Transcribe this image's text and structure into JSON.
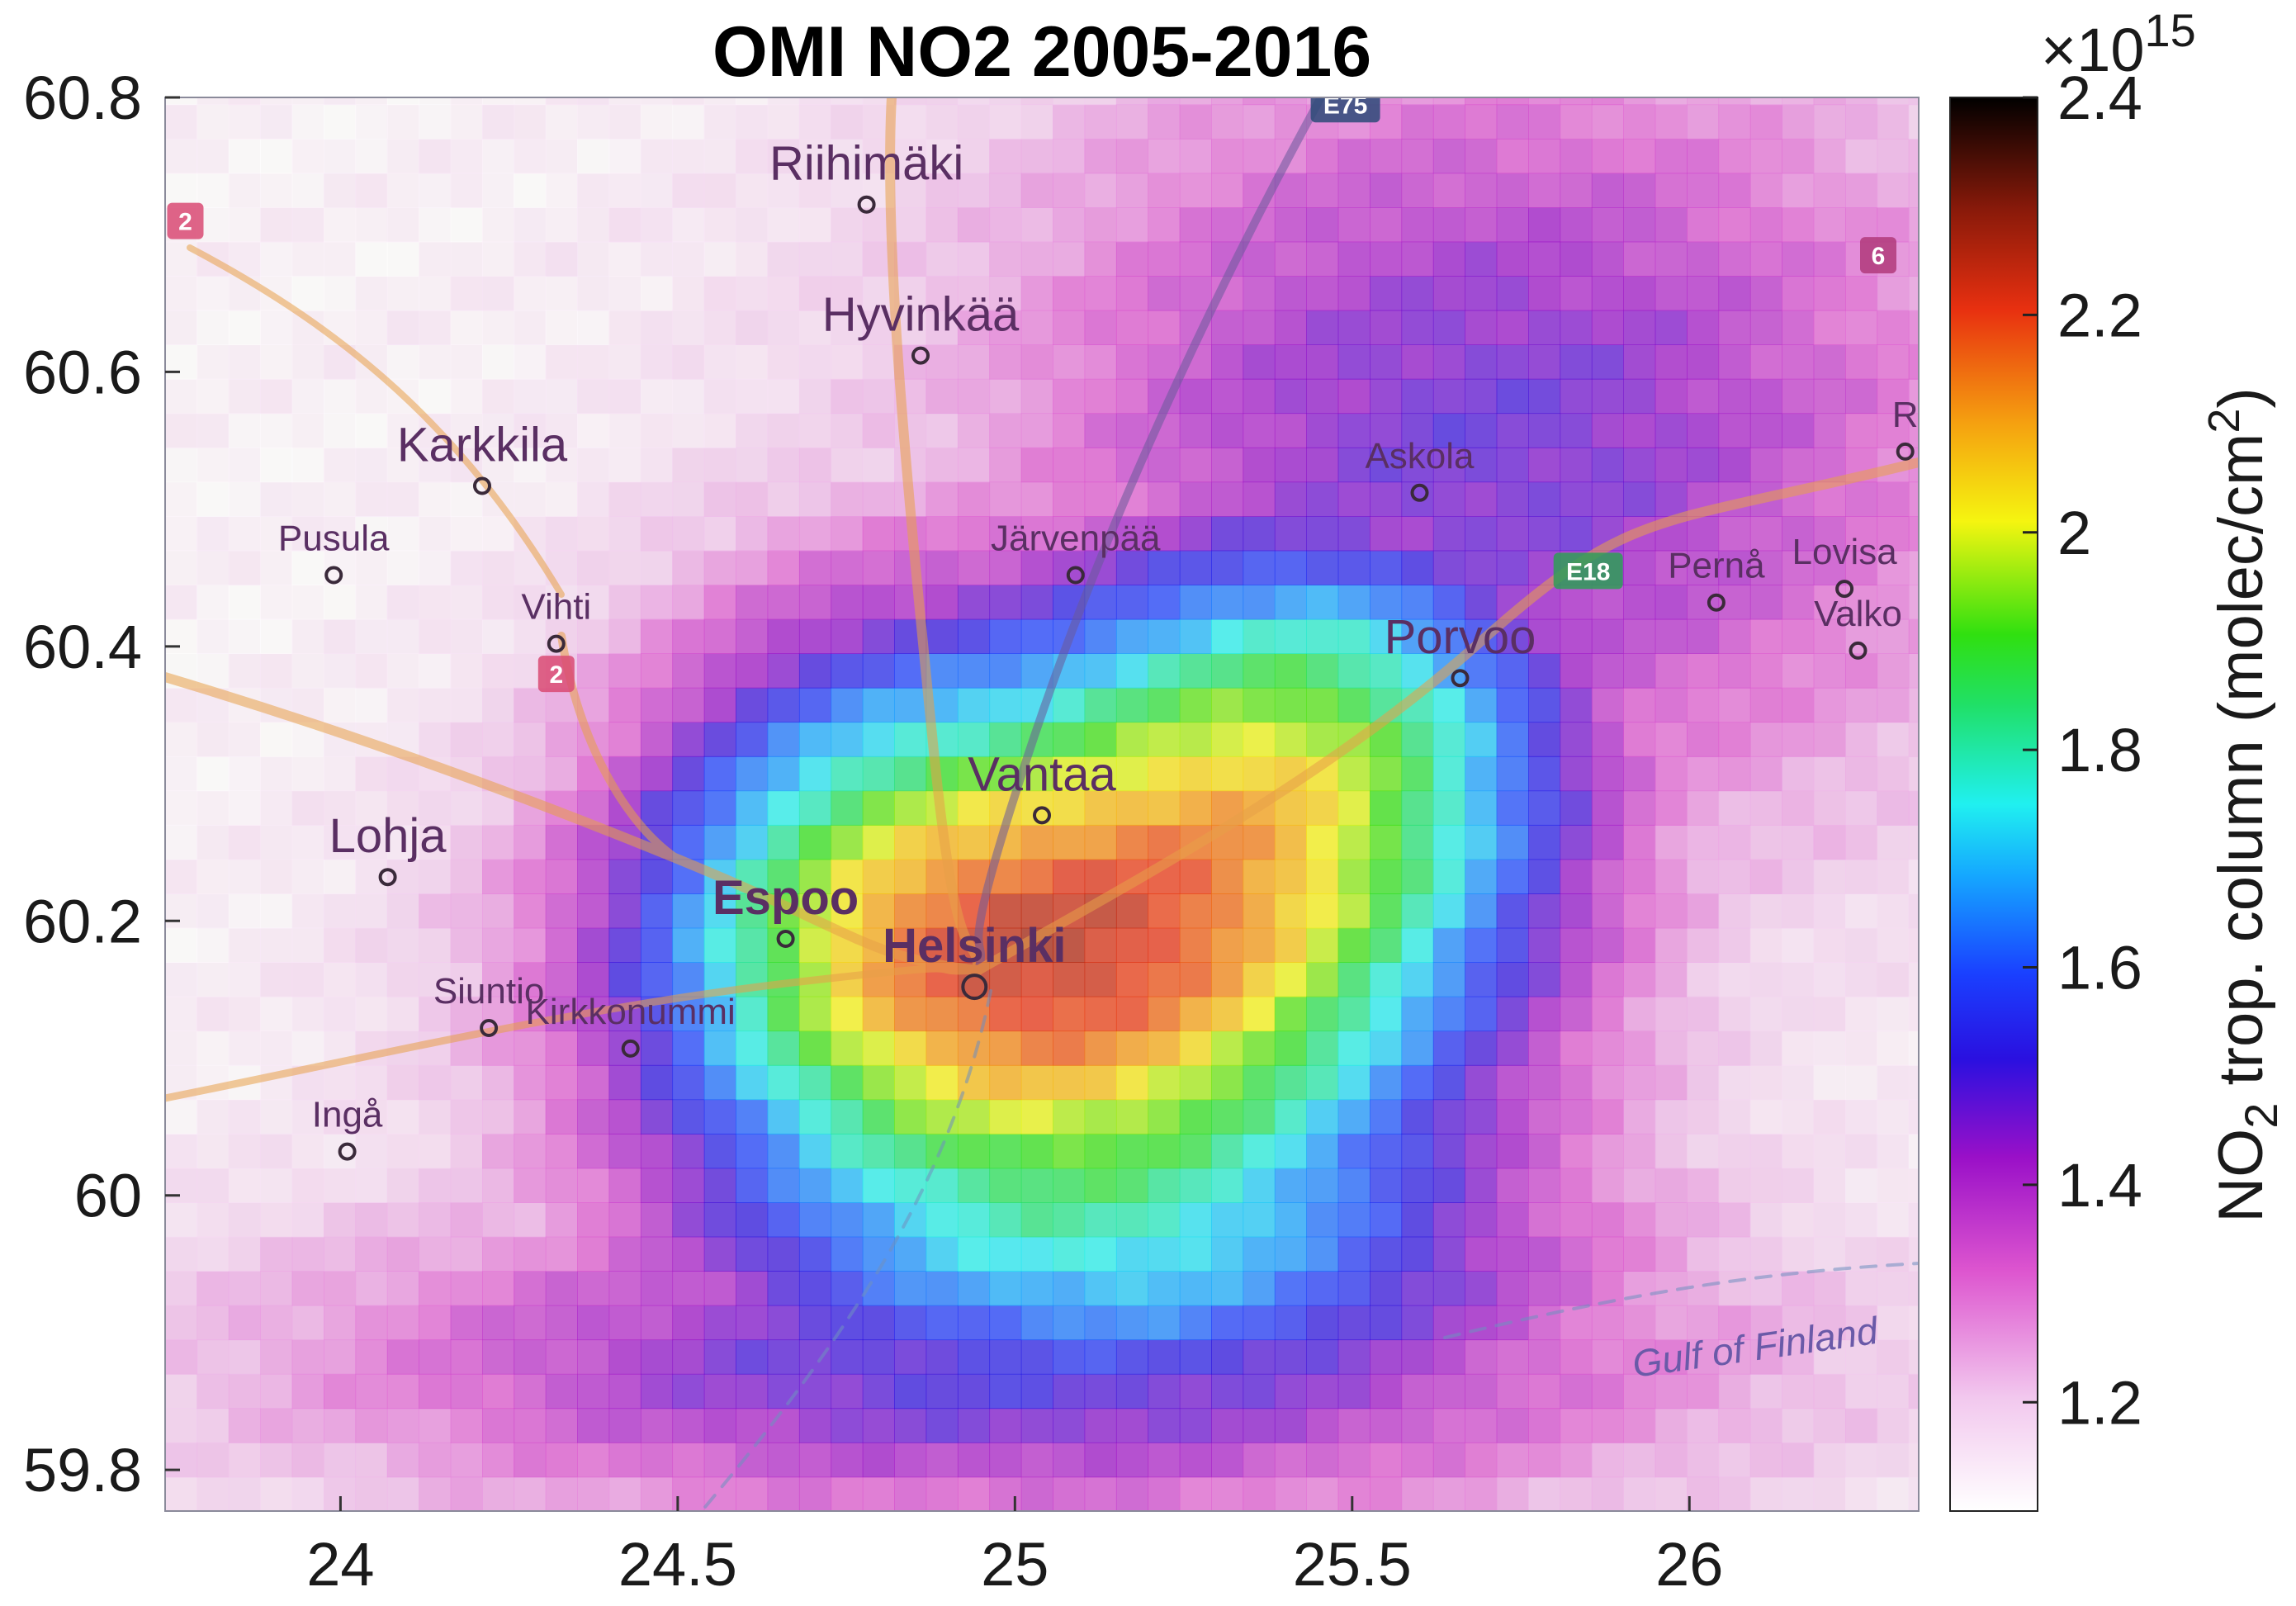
{
  "chart_data": {
    "type": "heatmap",
    "title": "OMI NO2 2005-2016",
    "xlabel": "",
    "ylabel": "",
    "xlim": [
      23.74,
      26.34
    ],
    "ylim": [
      59.77,
      60.8
    ],
    "x_ticks": [
      "24",
      "24.5",
      "25",
      "25.5",
      "26"
    ],
    "x_tick_values": [
      24,
      24.5,
      25,
      25.5,
      26
    ],
    "y_ticks": [
      "60.8",
      "60.6",
      "60.4",
      "60.2",
      "60",
      "59.8"
    ],
    "y_tick_values": [
      60.8,
      60.6,
      60.4,
      60.2,
      60.0,
      59.8
    ],
    "colorbar": {
      "multiplier_base": "×10",
      "multiplier_exp": "15",
      "label_prefix": "NO",
      "label_sub": "2",
      "label_mid": " trop. column (molec/cm",
      "label_sup": "2",
      "label_suffix": ")",
      "range": [
        1.1,
        2.4
      ],
      "ticks": [
        "2.4",
        "2.2",
        "2",
        "1.8",
        "1.6",
        "1.4",
        "1.2"
      ],
      "tick_values": [
        2.4,
        2.2,
        2.0,
        1.8,
        1.6,
        1.4,
        1.2
      ],
      "colormap": "white-magenta-blue-cyan-green-yellow-orange-red-black"
    },
    "field": {
      "description_units": "NO2 tropospheric column, ×10^15 molec/cm^2",
      "background": 1.12,
      "hotspots": [
        {
          "lon": 25.08,
          "lat": 60.15,
          "peak": 0.95,
          "sigma_lon": 0.42,
          "sigma_lat": 0.13
        },
        {
          "lon": 25.45,
          "lat": 60.35,
          "peak": 0.62,
          "sigma_lon": 0.3,
          "sigma_lat": 0.12
        },
        {
          "lon": 24.75,
          "lat": 60.28,
          "peak": 0.3,
          "sigma_lon": 0.25,
          "sigma_lat": 0.15
        },
        {
          "lon": 25.2,
          "lat": 59.92,
          "peak": 0.35,
          "sigma_lon": 0.55,
          "sigma_lat": 0.08
        }
      ],
      "northeast_blue_level": 1.48,
      "grid_lon_step": 0.047,
      "grid_lat_step": 0.025
    },
    "map_labels": [
      {
        "name": "Riihimäki",
        "lon": 24.78,
        "lat": 60.74
      },
      {
        "name": "Hyvinkää",
        "lon": 24.86,
        "lat": 60.63
      },
      {
        "name": "Karkkila",
        "lon": 24.21,
        "lat": 60.535
      },
      {
        "name": "Pusula",
        "lon": 23.99,
        "lat": 60.47
      },
      {
        "name": "Vihti",
        "lon": 24.32,
        "lat": 60.42
      },
      {
        "name": "Askola",
        "lon": 25.6,
        "lat": 60.53
      },
      {
        "name": "Järvenpää",
        "lon": 25.09,
        "lat": 60.47
      },
      {
        "name": "Pernå",
        "lon": 26.04,
        "lat": 60.45
      },
      {
        "name": "Lovisa",
        "lon": 26.23,
        "lat": 60.46
      },
      {
        "name": "Valko",
        "lon": 26.25,
        "lat": 60.415
      },
      {
        "name": "Porvoo",
        "lon": 25.66,
        "lat": 60.395
      },
      {
        "name": "Vantaa",
        "lon": 25.04,
        "lat": 60.295
      },
      {
        "name": "Lohja",
        "lon": 24.07,
        "lat": 60.25
      },
      {
        "name": "Espoo",
        "lon": 24.66,
        "lat": 60.205
      },
      {
        "name": "Helsinki",
        "lon": 24.94,
        "lat": 60.17
      },
      {
        "name": "Siuntio",
        "lon": 24.22,
        "lat": 60.14
      },
      {
        "name": "Kirkkonummi",
        "lon": 24.43,
        "lat": 60.125
      },
      {
        "name": "Ingå",
        "lon": 24.01,
        "lat": 60.05
      },
      {
        "name": "Gulf of Finland",
        "lon": 26.1,
        "lat": 59.88
      },
      {
        "name": "R",
        "lon": 26.32,
        "lat": 60.56
      }
    ],
    "road_labels": [
      {
        "name": "E75",
        "lon": 25.49,
        "lat": 60.795,
        "color": "#2c4a78"
      },
      {
        "name": "E18",
        "lon": 25.85,
        "lat": 60.455,
        "color": "#2e9e57"
      },
      {
        "name": "2",
        "lon": 23.77,
        "lat": 60.71,
        "color": "#d94a73"
      },
      {
        "name": "2",
        "lon": 24.32,
        "lat": 60.38,
        "color": "#d94a73"
      },
      {
        "name": "6",
        "lon": 26.28,
        "lat": 60.685,
        "color": "#b03a7a"
      }
    ]
  }
}
